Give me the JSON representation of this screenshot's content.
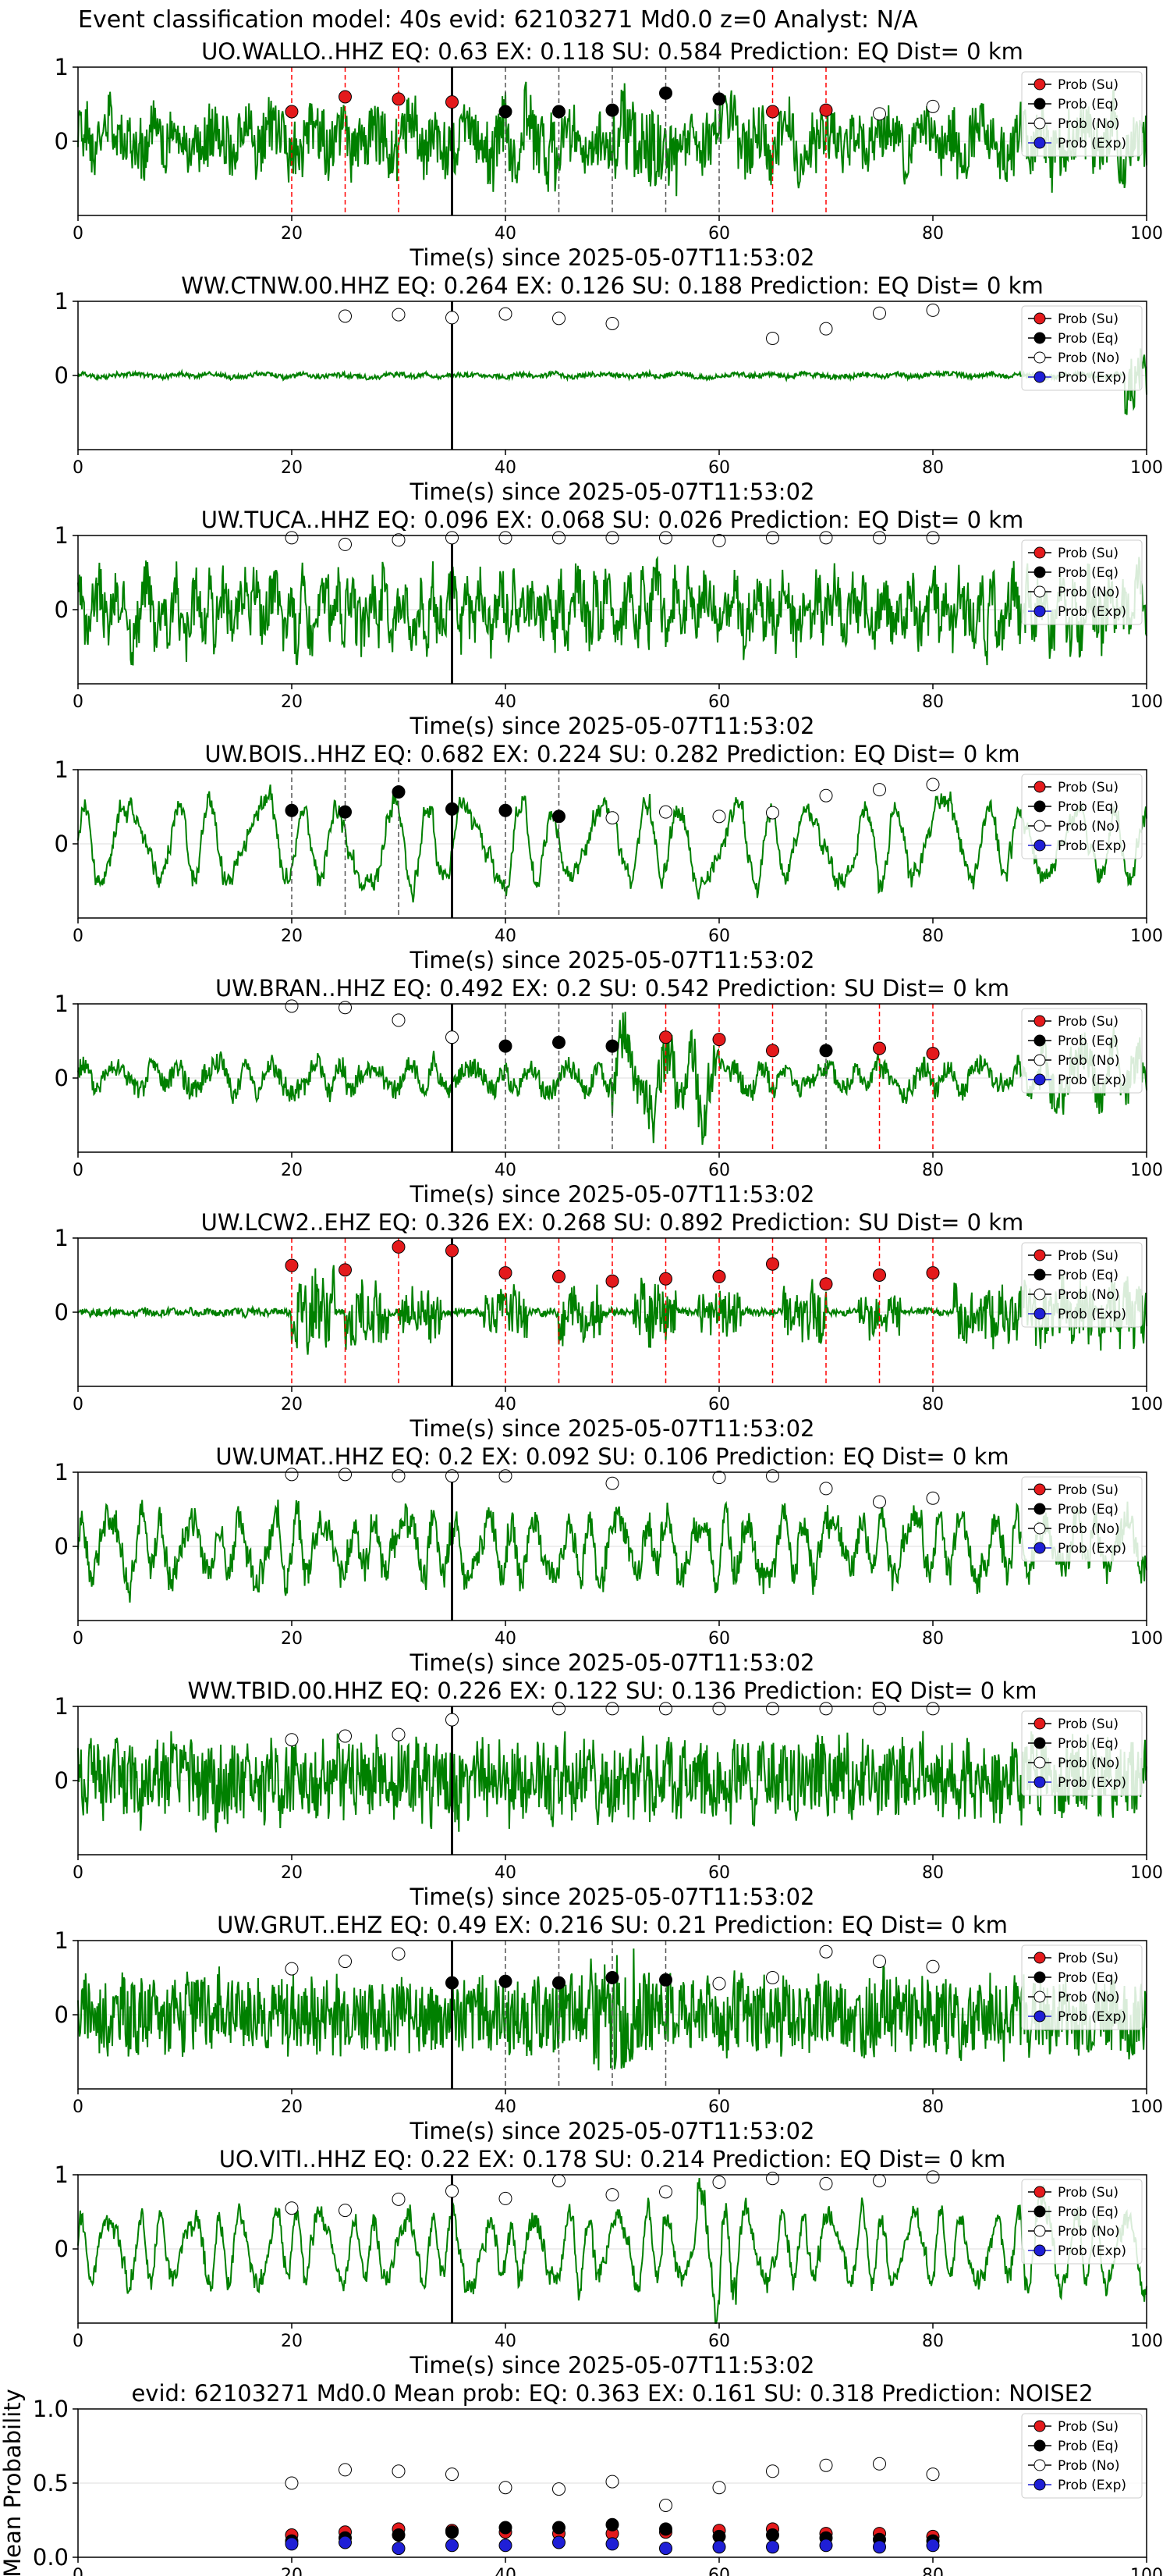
{
  "page": {
    "title": "Event classification model: 40s evid: 62103271 Md0.0 z=0 Analyst: N/A"
  },
  "colors": {
    "waveform": "#008000",
    "su": "#e41a1c",
    "eq": "#000000",
    "no": "#ffffff",
    "exp": "#1f1fd6",
    "su_line": "#ff0000",
    "eq_line": "#555555",
    "grid": "#dddddd"
  },
  "legend": {
    "placement": "top-right",
    "entries": [
      {
        "key": "su",
        "label": "Prob (Su)"
      },
      {
        "key": "eq",
        "label": "Prob (Eq)"
      },
      {
        "key": "no",
        "label": "Prob (No)"
      },
      {
        "key": "exp",
        "label": "Prob (Exp)"
      }
    ]
  },
  "chart_data": [
    {
      "type": "line",
      "title": "UO.WALLO..HHZ   EQ: 0.63   EX: 0.118   SU: 0.584   Prediction: EQ    Dist= 0 km",
      "xlabel": "Time(s) since 2025-05-07T11:53:02",
      "xlim": [
        0,
        100
      ],
      "ylim": [
        -1,
        1
      ],
      "xticks": [
        0,
        20,
        40,
        60,
        80,
        100
      ],
      "yticks": [
        1,
        0
      ],
      "wave": {
        "amplitude": 0.55,
        "roughness": 0.7,
        "period": 3,
        "seed": 1,
        "bursts": [
          [
            50,
            56,
            1.5
          ],
          [
            38,
            45,
            1.2
          ]
        ]
      },
      "origin_time": 35,
      "window_times": [
        20,
        25,
        30,
        35,
        40,
        45,
        50,
        55,
        60,
        65,
        70,
        75,
        80
      ],
      "prob_y": [
        0.4,
        0.6,
        0.57,
        0.53,
        0.4,
        0.4,
        0.42,
        0.65,
        0.57,
        0.4,
        0.42,
        0.37,
        0.47
      ],
      "prob_class": [
        "su",
        "su",
        "su",
        "su",
        "eq",
        "eq",
        "eq",
        "eq",
        "eq",
        "su",
        "su",
        "no",
        "no"
      ]
    },
    {
      "type": "line",
      "title": "WW.CTNW.00.HHZ   EQ: 0.264   EX: 0.126   SU: 0.188   Prediction: EQ    Dist= 0 km",
      "xlabel": "Time(s) since 2025-05-07T11:53:02",
      "xlim": [
        0,
        100
      ],
      "ylim": [
        -1,
        1
      ],
      "xticks": [
        0,
        20,
        40,
        60,
        80,
        100
      ],
      "yticks": [
        1,
        0
      ],
      "wave": {
        "amplitude": 0.05,
        "roughness": 0.6,
        "period": 4,
        "seed": 2,
        "bursts": [
          [
            98,
            100,
            12
          ]
        ]
      },
      "origin_time": 35,
      "window_times": [
        25,
        30,
        35,
        40,
        45,
        50,
        65,
        70,
        75,
        80
      ],
      "prob_y": [
        0.8,
        0.82,
        0.78,
        0.83,
        0.77,
        0.7,
        0.5,
        0.63,
        0.84,
        0.88
      ],
      "prob_class": [
        "no",
        "no",
        "no",
        "no",
        "no",
        "no",
        "no",
        "no",
        "no",
        "no"
      ]
    },
    {
      "type": "line",
      "title": "UW.TUCA..HHZ   EQ: 0.096   EX: 0.068   SU: 0.026   Prediction: EQ    Dist= 0 km",
      "xlabel": "Time(s) since 2025-05-07T11:53:02",
      "xlim": [
        0,
        100
      ],
      "ylim": [
        -1,
        1
      ],
      "xticks": [
        0,
        20,
        40,
        60,
        80,
        100
      ],
      "yticks": [
        1,
        0
      ],
      "wave": {
        "amplitude": 0.6,
        "roughness": 0.6,
        "period": 1.5,
        "seed": 3,
        "bursts": []
      },
      "origin_time": 35,
      "window_times": [
        20,
        25,
        30,
        35,
        40,
        45,
        50,
        55,
        60,
        65,
        70,
        75,
        80
      ],
      "prob_y": [
        0.97,
        0.88,
        0.94,
        0.97,
        0.97,
        0.97,
        0.97,
        0.97,
        0.93,
        0.97,
        0.97,
        0.97,
        0.97
      ],
      "prob_class": [
        "no",
        "no",
        "no",
        "no",
        "no",
        "no",
        "no",
        "no",
        "no",
        "no",
        "no",
        "no",
        "no"
      ]
    },
    {
      "type": "line",
      "title": "UW.BOIS..HHZ   EQ: 0.682   EX: 0.224   SU: 0.282   Prediction: EQ    Dist= 0 km",
      "xlabel": "Time(s) since 2025-05-07T11:53:02",
      "xlim": [
        0,
        100
      ],
      "ylim": [
        -1,
        1
      ],
      "xticks": [
        0,
        20,
        40,
        60,
        80,
        100
      ],
      "yticks": [
        1,
        0
      ],
      "wave": {
        "amplitude": 0.6,
        "roughness": 0.15,
        "period": 4,
        "seed": 4,
        "bursts": []
      },
      "origin_time": 35,
      "window_times": [
        20,
        25,
        30,
        35,
        40,
        45,
        50,
        55,
        60,
        65,
        70,
        75,
        80
      ],
      "prob_y": [
        0.45,
        0.43,
        0.7,
        0.47,
        0.45,
        0.37,
        0.35,
        0.43,
        0.37,
        0.42,
        0.65,
        0.73,
        0.8
      ],
      "prob_class": [
        "eq",
        "eq",
        "eq",
        "eq",
        "eq",
        "eq",
        "no",
        "no",
        "no",
        "no",
        "no",
        "no",
        "no"
      ]
    },
    {
      "type": "line",
      "title": "UW.BRAN..HHZ   EQ: 0.492   EX: 0.2   SU: 0.542   Prediction: SU    Dist= 0 km",
      "xlabel": "Time(s) since 2025-05-07T11:53:02",
      "xlim": [
        0,
        100
      ],
      "ylim": [
        -1,
        1
      ],
      "xticks": [
        0,
        20,
        40,
        60,
        80,
        100
      ],
      "yticks": [
        1,
        0
      ],
      "wave": {
        "amplitude": 0.3,
        "roughness": 0.45,
        "period": 3,
        "seed": 5,
        "bursts": [
          [
            50,
            60,
            2.5
          ],
          [
            90,
            100,
            2
          ]
        ]
      },
      "origin_time": 35,
      "window_times": [
        20,
        25,
        30,
        35,
        40,
        45,
        50,
        55,
        60,
        65,
        70,
        75,
        80
      ],
      "prob_y": [
        0.97,
        0.95,
        0.78,
        0.55,
        0.43,
        0.48,
        0.43,
        0.55,
        0.52,
        0.37,
        0.37,
        0.4,
        0.33
      ],
      "prob_class": [
        "no",
        "no",
        "no",
        "no",
        "eq",
        "eq",
        "eq",
        "su",
        "su",
        "su",
        "eq",
        "su",
        "su"
      ]
    },
    {
      "type": "line",
      "title": "UW.LCW2..EHZ   EQ: 0.326   EX: 0.268   SU: 0.892   Prediction: SU    Dist= 0 km",
      "xlabel": "Time(s) since 2025-05-07T11:53:02",
      "xlim": [
        0,
        100
      ],
      "ylim": [
        -1,
        1
      ],
      "xticks": [
        0,
        20,
        40,
        60,
        80,
        100
      ],
      "yticks": [
        1,
        0
      ],
      "wave": {
        "amplitude": 0.06,
        "roughness": 0.8,
        "period": 2,
        "seed": 6,
        "bursts": [
          [
            20,
            24,
            10
          ],
          [
            25,
            29,
            8
          ],
          [
            30,
            34,
            7
          ],
          [
            38,
            42,
            6
          ],
          [
            45,
            49,
            7
          ],
          [
            52,
            56,
            7
          ],
          [
            58,
            62,
            6
          ],
          [
            66,
            70,
            7
          ],
          [
            73,
            77,
            6
          ],
          [
            82,
            100,
            8
          ]
        ]
      },
      "origin_time": 35,
      "window_times": [
        20,
        25,
        30,
        35,
        40,
        45,
        50,
        55,
        60,
        65,
        70,
        75,
        80
      ],
      "prob_y": [
        0.63,
        0.57,
        0.88,
        0.83,
        0.53,
        0.48,
        0.42,
        0.45,
        0.48,
        0.65,
        0.38,
        0.5,
        0.53
      ],
      "prob_class": [
        "su",
        "su",
        "su",
        "su",
        "su",
        "su",
        "su",
        "su",
        "su",
        "su",
        "su",
        "su",
        "su"
      ]
    },
    {
      "type": "line",
      "title": "UW.UMAT..HHZ   EQ: 0.2   EX: 0.092   SU: 0.106   Prediction: EQ    Dist= 0 km",
      "xlabel": "Time(s) since 2025-05-07T11:53:02",
      "xlim": [
        0,
        100
      ],
      "ylim": [
        -1,
        1
      ],
      "xticks": [
        0,
        20,
        40,
        60,
        80,
        100
      ],
      "yticks": [
        1,
        0
      ],
      "wave": {
        "amplitude": 0.55,
        "roughness": 0.35,
        "period": 2.5,
        "seed": 7,
        "bursts": []
      },
      "origin_time": 35,
      "window_times": [
        20,
        25,
        30,
        35,
        40,
        50,
        60,
        65,
        70,
        75,
        80
      ],
      "prob_y": [
        0.97,
        0.97,
        0.95,
        0.95,
        0.95,
        0.85,
        0.93,
        0.95,
        0.78,
        0.6,
        0.65
      ],
      "prob_class": [
        "no",
        "no",
        "no",
        "no",
        "no",
        "no",
        "no",
        "no",
        "no",
        "no",
        "no"
      ]
    },
    {
      "type": "line",
      "title": "WW.TBID.00.HHZ   EQ: 0.226   EX: 0.122   SU: 0.136   Prediction: EQ    Dist= 0 km",
      "xlabel": "Time(s) since 2025-05-07T11:53:02",
      "xlim": [
        0,
        100
      ],
      "ylim": [
        -1,
        1
      ],
      "xticks": [
        0,
        20,
        40,
        60,
        80,
        100
      ],
      "yticks": [
        1,
        0
      ],
      "wave": {
        "amplitude": 0.6,
        "roughness": 0.8,
        "period": 1.2,
        "seed": 8,
        "bursts": []
      },
      "origin_time": 35,
      "window_times": [
        20,
        25,
        30,
        35,
        45,
        50,
        55,
        60,
        65,
        70,
        75,
        80
      ],
      "prob_y": [
        0.55,
        0.6,
        0.62,
        0.82,
        0.97,
        0.97,
        0.97,
        0.97,
        0.97,
        0.97,
        0.97,
        0.97
      ],
      "prob_class": [
        "no",
        "no",
        "no",
        "no",
        "no",
        "no",
        "no",
        "no",
        "no",
        "no",
        "no",
        "no"
      ]
    },
    {
      "type": "line",
      "title": "UW.GRUT..EHZ   EQ: 0.49   EX: 0.216   SU: 0.21   Prediction: EQ    Dist= 0 km",
      "xlabel": "Time(s) since 2025-05-07T11:53:02",
      "xlim": [
        0,
        100
      ],
      "ylim": [
        -1,
        1
      ],
      "xticks": [
        0,
        20,
        40,
        60,
        80,
        100
      ],
      "yticks": [
        1,
        0
      ],
      "wave": {
        "amplitude": 0.55,
        "roughness": 0.9,
        "period": 1,
        "seed": 9,
        "bursts": [
          [
            48,
            52,
            1.5
          ]
        ]
      },
      "origin_time": 35,
      "window_times": [
        20,
        25,
        30,
        35,
        40,
        45,
        50,
        55,
        60,
        65,
        70,
        75,
        80
      ],
      "prob_y": [
        0.62,
        0.72,
        0.82,
        0.43,
        0.45,
        0.43,
        0.5,
        0.47,
        0.42,
        0.5,
        0.85,
        0.72,
        0.65
      ],
      "prob_class": [
        "no",
        "no",
        "no",
        "eq",
        "eq",
        "eq",
        "eq",
        "eq",
        "no",
        "no",
        "no",
        "no",
        "no"
      ]
    },
    {
      "type": "line",
      "title": "UO.VITI..HHZ   EQ: 0.22   EX: 0.178   SU: 0.214   Prediction: EQ    Dist= 0 km",
      "xlabel": "Time(s) since 2025-05-07T11:53:02",
      "xlim": [
        0,
        100
      ],
      "ylim": [
        -1,
        1
      ],
      "xticks": [
        0,
        20,
        40,
        60,
        80,
        100
      ],
      "yticks": [
        1,
        0
      ],
      "wave": {
        "amplitude": 0.55,
        "roughness": 0.2,
        "period": 2.5,
        "seed": 10,
        "bursts": [
          [
            58,
            62,
            1.5
          ],
          [
            88,
            92,
            1.5
          ]
        ]
      },
      "origin_time": 35,
      "window_times": [
        20,
        25,
        30,
        35,
        40,
        45,
        50,
        55,
        60,
        65,
        70,
        75,
        80
      ],
      "prob_y": [
        0.55,
        0.52,
        0.67,
        0.78,
        0.68,
        0.92,
        0.73,
        0.77,
        0.9,
        0.95,
        0.88,
        0.92,
        0.97
      ],
      "prob_class": [
        "no",
        "no",
        "no",
        "no",
        "no",
        "no",
        "no",
        "no",
        "no",
        "no",
        "no",
        "no",
        "no"
      ]
    },
    {
      "type": "scatter",
      "title": "evid: 62103271  Md0.0   Mean prob:   EQ: 0.363  EX: 0.161  SU: 0.318   Prediction: NOISE2",
      "ylabel": "Mean Probability",
      "xlim": [
        0,
        100
      ],
      "ylim": [
        0,
        1
      ],
      "xticks": [
        0,
        20,
        40,
        60,
        80,
        100
      ],
      "yticks": [
        0.0,
        0.5,
        1.0
      ],
      "ytick_labels": [
        "0.0",
        "0.5",
        "1.0"
      ],
      "x": [
        20,
        25,
        30,
        35,
        40,
        45,
        50,
        55,
        60,
        65,
        70,
        75,
        80
      ],
      "series": [
        {
          "name": "Prob (Su)",
          "key": "su",
          "values": [
            0.15,
            0.17,
            0.19,
            0.18,
            0.17,
            0.16,
            0.16,
            0.17,
            0.18,
            0.19,
            0.16,
            0.16,
            0.14
          ]
        },
        {
          "name": "Prob (Eq)",
          "key": "eq",
          "values": [
            0.11,
            0.13,
            0.15,
            0.17,
            0.2,
            0.2,
            0.22,
            0.19,
            0.14,
            0.15,
            0.13,
            0.12,
            0.11
          ]
        },
        {
          "name": "Prob (No)",
          "key": "no",
          "values": [
            0.5,
            0.59,
            0.58,
            0.56,
            0.47,
            0.46,
            0.51,
            0.35,
            0.47,
            0.58,
            0.62,
            0.63,
            0.56
          ]
        },
        {
          "name": "Prob (Exp)",
          "key": "exp",
          "values": [
            0.09,
            0.1,
            0.06,
            0.08,
            0.08,
            0.1,
            0.09,
            0.06,
            0.07,
            0.07,
            0.08,
            0.07,
            0.08
          ]
        }
      ]
    }
  ]
}
